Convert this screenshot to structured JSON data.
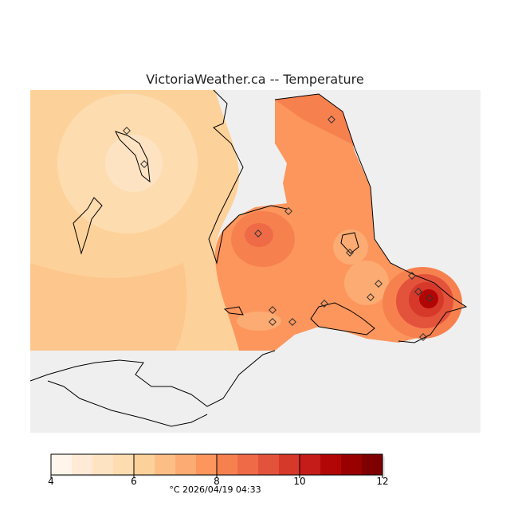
{
  "title": "VictoriaWeather.ca  -- Temperature",
  "colorbar": {
    "min": 4,
    "max": 12,
    "step": 0.5,
    "tick_labels": [
      "4",
      "6",
      "8",
      "10",
      "12"
    ],
    "colors": [
      "#fff5ea",
      "#feead5",
      "#fee3c3",
      "#fddcaf",
      "#fdd19a",
      "#fdbe85",
      "#fcab72",
      "#fc965d",
      "#f7804f",
      "#ef6a47",
      "#e3523b",
      "#d6382a",
      "#c51c1a",
      "#b10605",
      "#990000",
      "#7f0000"
    ]
  },
  "footer": "°C  2026/04/19 04:33",
  "colors": {
    "background_land": "#efefef",
    "no_data": "#ffffff"
  }
}
